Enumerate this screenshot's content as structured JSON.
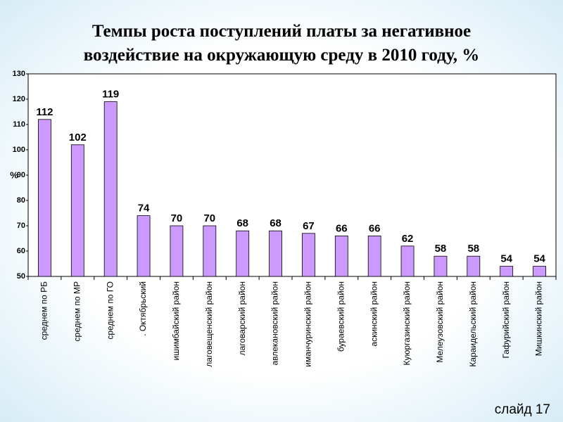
{
  "chart_data": {
    "type": "bar",
    "title": "Темпы роста поступлений платы за негативное воздействие на окружающую среду в 2010 году, %",
    "y_label": "%",
    "categories": [
      "среднем по РБ",
      "среднем по МР",
      "среднем по ГО",
      ". Октябрьский",
      "ишимбайский район",
      "лаговещенский район",
      "лаговарский район",
      "авлекановский район",
      "иманчуринский район",
      "бураевский район",
      "аскинский район",
      "Куюргазинский район",
      "Мелеузовский район",
      "Караидельский район",
      "Гафурийский район",
      "Мишкинский район"
    ],
    "values": [
      112,
      102,
      119,
      74,
      70,
      70,
      68,
      68,
      67,
      66,
      66,
      62,
      58,
      58,
      54,
      54
    ],
    "color": "#cc99ff",
    "ylim": [
      50,
      130
    ],
    "yticks": [
      50,
      60,
      70,
      80,
      90,
      100,
      110,
      120,
      130
    ]
  },
  "footer": "слайд 17"
}
